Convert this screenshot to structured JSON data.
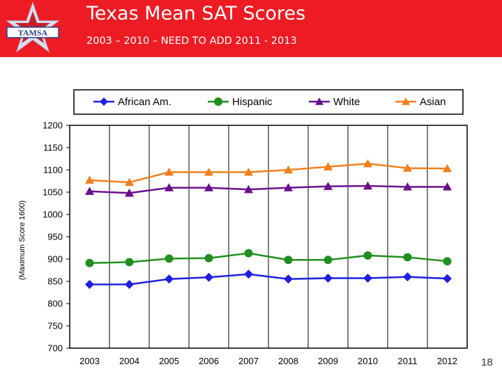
{
  "header": {
    "title": "Texas Mean SAT Scores",
    "subtitle": "2003 – 2010 – NEED TO ADD 2011 - 2013",
    "logo_text": "TAMSA",
    "color": "#ed1c24"
  },
  "page_number": "18",
  "chart_data": {
    "type": "line",
    "categories": [
      "2003",
      "2004",
      "2005",
      "2006",
      "2007",
      "2008",
      "2009",
      "2010",
      "2011",
      "2012"
    ],
    "ylabel": "(Maximum Score 1600)",
    "xlabel": "",
    "ylim": [
      700,
      1200
    ],
    "ytick_step": 50,
    "yticks": [
      "700",
      "750",
      "800",
      "850",
      "900",
      "950",
      "1000",
      "1050",
      "1100",
      "1150",
      "1200"
    ],
    "grid": "vertical",
    "legend_position": "top",
    "series": [
      {
        "name": "African Am.",
        "marker": "diamond",
        "color": "#1f1fe0",
        "values": [
          843,
          843,
          855,
          859,
          866,
          855,
          857,
          857,
          860,
          856
        ]
      },
      {
        "name": "Hispanic",
        "marker": "circle",
        "color": "#1f8f1f",
        "values": [
          891,
          893,
          901,
          902,
          913,
          898,
          898,
          908,
          904,
          895
        ]
      },
      {
        "name": "White",
        "marker": "triangle",
        "color": "#6a0f8e",
        "values": [
          1052,
          1048,
          1060,
          1060,
          1056,
          1060,
          1063,
          1064,
          1062,
          1062
        ]
      },
      {
        "name": "Asian",
        "marker": "triangle",
        "color": "#f07f1e",
        "values": [
          1077,
          1072,
          1095,
          1095,
          1095,
          1100,
          1107,
          1114,
          1104,
          1103
        ]
      }
    ]
  }
}
